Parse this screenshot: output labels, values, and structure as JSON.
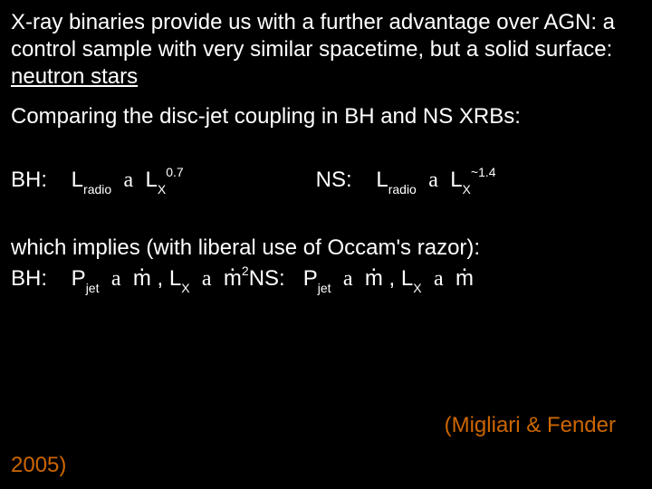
{
  "colors": {
    "background": "#000000",
    "text": "#ffffff",
    "citation_color": "#cc6600"
  },
  "typography": {
    "body_fontsize_pt": 18,
    "sub_fontsize_pt": 11,
    "sup_fontsize_pt": 11,
    "font_family": "Arial"
  },
  "para1_a": "X-ray binaries provide us with a further advantage over AGN: a control sample with very similar spacetime, but a solid surface: ",
  "para1_b": "neutron stars",
  "para2": "Comparing the disc-jet coupling in BH and NS XRBs:",
  "rel": {
    "bh_label": "BH:",
    "ns_label": "NS:",
    "L": "L",
    "sub_radio": "radio",
    "sub_X": "X",
    "prop": " ∝ ",
    "alpha": "a",
    "exp_bh": "0.7",
    "exp_ns": "~1.4"
  },
  "implies": "which implies (with liberal use of Occam's razor):",
  "eq": {
    "bh_label": "BH:",
    "ns_label": "NS:",
    "P": "P",
    "sub_jet": "jet",
    "alpha": "a",
    "m": "m",
    "comma_sp": " , ",
    "L": "L",
    "sub_X": "X",
    "sup2": "2"
  },
  "citation": {
    "text": "(Migliari & Fender",
    "year": "2005)"
  }
}
